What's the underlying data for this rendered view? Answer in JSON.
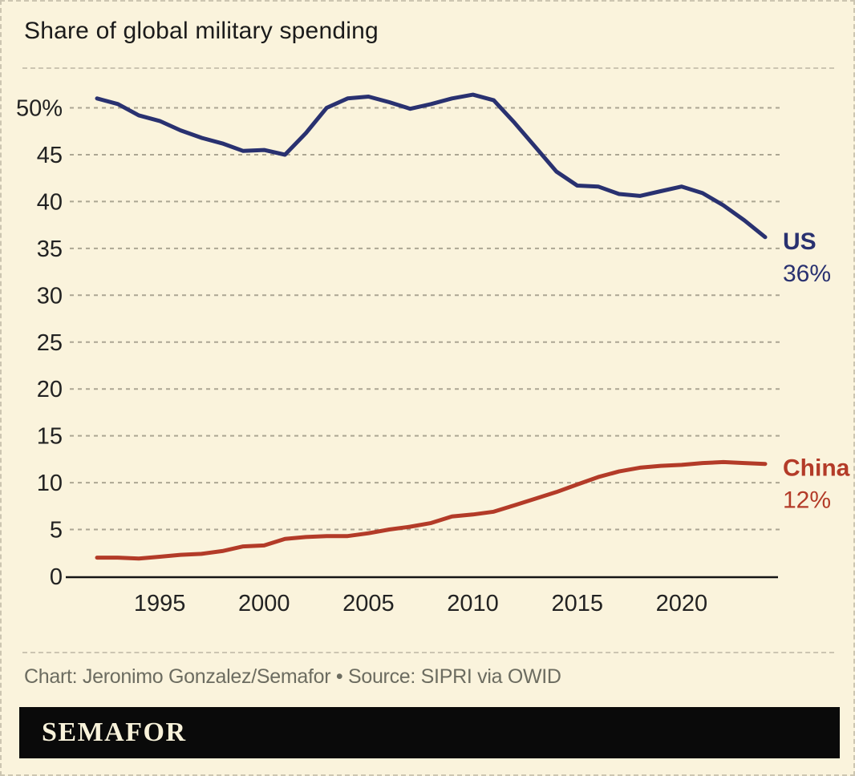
{
  "page": {
    "title": "Share of global military spending",
    "footer": "Chart: Jeronimo Gonzalez/Semafor • Source: SIPRI via OWID",
    "logo": "SEMAFOR"
  },
  "colors": {
    "background": "#faf3dc",
    "us_line": "#293170",
    "china_line": "#b33b28",
    "gridline": "#aca693",
    "axis": "#151515",
    "tick_text": "#222222",
    "footer_text": "#6c6c60",
    "logo_bar": "#0a0a0a",
    "logo_text": "#f8f2da",
    "dashed_border": "#ccc5b1"
  },
  "chart_data": {
    "type": "line",
    "title": "Share of global military spending",
    "xlabel": "",
    "ylabel": "Share of global military spending (%)",
    "grid": "horizontal dashed",
    "legend_position": "end-of-line labels",
    "xlim": [
      1992,
      2024
    ],
    "ylim": [
      0,
      52.5
    ],
    "xticks": [
      1995,
      2000,
      2005,
      2010,
      2015,
      2020
    ],
    "yticks": [
      0,
      5,
      10,
      15,
      20,
      25,
      30,
      35,
      40,
      45,
      50
    ],
    "ytick_labels": [
      "0",
      "5",
      "10",
      "15",
      "20",
      "25",
      "30",
      "35",
      "40",
      "45",
      "50%"
    ],
    "x": [
      1992,
      1993,
      1994,
      1995,
      1996,
      1997,
      1998,
      1999,
      2000,
      2001,
      2002,
      2003,
      2004,
      2005,
      2006,
      2007,
      2008,
      2009,
      2010,
      2011,
      2012,
      2013,
      2014,
      2015,
      2016,
      2017,
      2018,
      2019,
      2020,
      2021,
      2022,
      2023,
      2024
    ],
    "series": [
      {
        "name": "US",
        "end_label": "US",
        "end_value_label": "36%",
        "color": "#293170",
        "values": [
          51.0,
          50.4,
          49.2,
          48.6,
          47.6,
          46.8,
          46.2,
          45.4,
          45.5,
          45.0,
          47.3,
          50.0,
          51.0,
          51.2,
          50.6,
          49.9,
          50.4,
          51.0,
          51.4,
          50.8,
          48.4,
          45.8,
          43.2,
          41.7,
          41.6,
          40.8,
          40.6,
          41.1,
          41.6,
          40.9,
          39.6,
          38.0,
          36.2
        ]
      },
      {
        "name": "China",
        "end_label": "China",
        "end_value_label": "12%",
        "color": "#b33b28",
        "values": [
          2.0,
          2.0,
          1.9,
          2.1,
          2.3,
          2.4,
          2.7,
          3.2,
          3.3,
          4.0,
          4.2,
          4.3,
          4.3,
          4.6,
          5.0,
          5.3,
          5.7,
          6.4,
          6.6,
          6.9,
          7.6,
          8.3,
          9.0,
          9.8,
          10.6,
          11.2,
          11.6,
          11.8,
          11.9,
          12.1,
          12.2,
          12.1,
          12.0
        ]
      }
    ]
  }
}
